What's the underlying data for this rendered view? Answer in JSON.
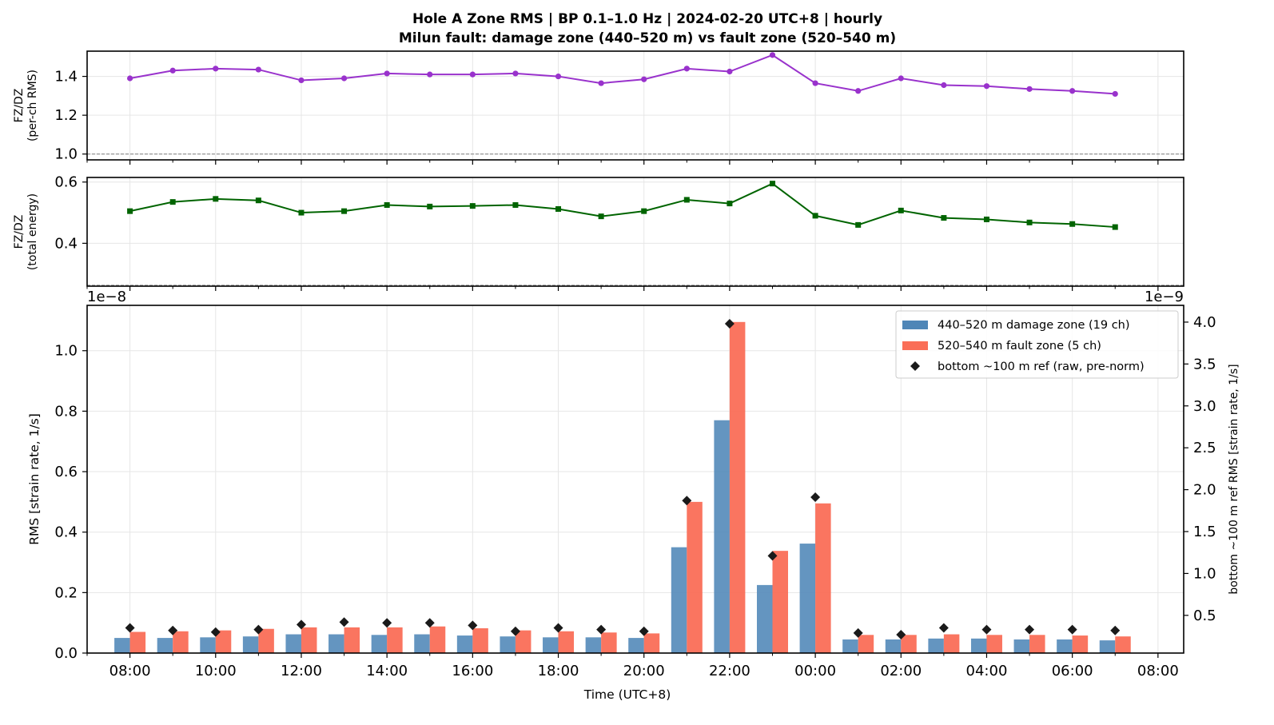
{
  "title_line1": "Hole A Zone RMS  |  BP 0.1–1.0 Hz  |  2024-02-20 UTC+8  |  hourly",
  "title_line2": "Milun fault: damage zone (440–520 m) vs fault zone (520–540 m)",
  "chart_data": [
    {
      "type": "line",
      "ylabel": [
        "FZ/DZ",
        "(per-ch RMS)"
      ],
      "ylim": [
        0.97,
        1.53
      ],
      "yticks": [
        "1.0",
        "1.2",
        "1.4"
      ],
      "reference_line": 1.0,
      "color": "#9932cc",
      "marker": "circle",
      "x_hours": [
        8,
        9,
        10,
        11,
        12,
        13,
        14,
        15,
        16,
        17,
        18,
        19,
        20,
        21,
        22,
        23,
        24,
        25,
        26,
        27,
        28,
        29,
        30,
        31
      ],
      "values": [
        1.39,
        1.43,
        1.44,
        1.435,
        1.38,
        1.39,
        1.415,
        1.41,
        1.41,
        1.415,
        1.4,
        1.365,
        1.385,
        1.44,
        1.425,
        1.51,
        1.365,
        1.325,
        1.39,
        1.355,
        1.35,
        1.335,
        1.325,
        1.31
      ]
    },
    {
      "type": "line",
      "ylabel": [
        "FZ/DZ",
        "(total energy)"
      ],
      "ylim": [
        0.26,
        0.615
      ],
      "yticks": [
        "0.4",
        "0.6"
      ],
      "reference_line": 0.263,
      "color": "#006400",
      "marker": "square",
      "x_hours": [
        8,
        9,
        10,
        11,
        12,
        13,
        14,
        15,
        16,
        17,
        18,
        19,
        20,
        21,
        22,
        23,
        24,
        25,
        26,
        27,
        28,
        29,
        30,
        31
      ],
      "values": [
        0.505,
        0.535,
        0.545,
        0.54,
        0.5,
        0.505,
        0.525,
        0.52,
        0.522,
        0.525,
        0.512,
        0.488,
        0.505,
        0.542,
        0.53,
        0.595,
        0.49,
        0.46,
        0.507,
        0.483,
        0.478,
        0.468,
        0.463,
        0.453
      ]
    },
    {
      "type": "bar",
      "xlabel": "Time (UTC+8)",
      "ylabel": "RMS  [strain rate, 1/s]",
      "ylabel_right": "bottom ~100 m ref RMS  [strain rate, 1/s]",
      "ylim": [
        0,
        1.15
      ],
      "ylim_right": [
        0.05,
        4.2
      ],
      "offset_left": "1e−8",
      "offset_right": "1e−9",
      "yticks": [
        "0.0",
        "0.2",
        "0.4",
        "0.6",
        "0.8",
        "1.0"
      ],
      "yticks_right": [
        "0.5",
        "1.0",
        "1.5",
        "2.0",
        "2.5",
        "3.0",
        "3.5",
        "4.0"
      ],
      "xticks": [
        "08:00",
        "10:00",
        "12:00",
        "14:00",
        "16:00",
        "18:00",
        "20:00",
        "22:00",
        "00:00",
        "02:00",
        "04:00",
        "06:00",
        "08:00"
      ],
      "x_hours": [
        8,
        9,
        10,
        11,
        12,
        13,
        14,
        15,
        16,
        17,
        18,
        19,
        20,
        21,
        22,
        23,
        24,
        25,
        26,
        27,
        28,
        29,
        30,
        31
      ],
      "legend_position": "upper right",
      "series": [
        {
          "name": "440–520 m  damage zone (19 ch)",
          "color": "#4f86b7",
          "values": [
            0.05,
            0.05,
            0.052,
            0.055,
            0.062,
            0.062,
            0.06,
            0.062,
            0.058,
            0.055,
            0.052,
            0.052,
            0.05,
            0.35,
            0.77,
            0.225,
            0.362,
            0.045,
            0.045,
            0.048,
            0.048,
            0.045,
            0.045,
            0.042
          ]
        },
        {
          "name": "520–540 m  fault zone (5 ch)",
          "color": "#fa6e57",
          "values": [
            0.07,
            0.072,
            0.075,
            0.08,
            0.085,
            0.085,
            0.085,
            0.088,
            0.082,
            0.075,
            0.072,
            0.068,
            0.065,
            0.5,
            1.095,
            0.338,
            0.495,
            0.06,
            0.06,
            0.062,
            0.06,
            0.06,
            0.058,
            0.055
          ]
        },
        {
          "name": "bottom ~100 m ref (raw, pre-norm)",
          "color": "#1a1a1a",
          "marker": "diamond",
          "axis": "right",
          "values": [
            0.35,
            0.32,
            0.3,
            0.33,
            0.39,
            0.42,
            0.41,
            0.41,
            0.38,
            0.31,
            0.35,
            0.33,
            0.31,
            1.87,
            3.98,
            1.21,
            1.91,
            0.29,
            0.27,
            0.35,
            0.33,
            0.33,
            0.33,
            0.32
          ]
        }
      ]
    }
  ]
}
